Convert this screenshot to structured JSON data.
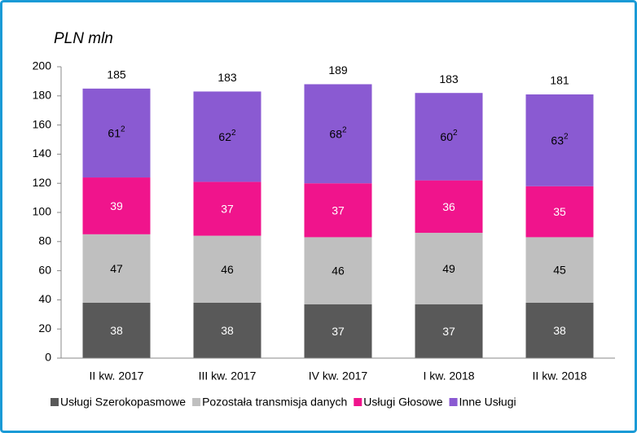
{
  "chart_data": {
    "type": "stacked_bar",
    "title": "PLN mln",
    "categories": [
      "II kw. 2017",
      "III kw. 2017",
      "IV kw. 2017",
      "I kw. 2018",
      "II kw. 2018"
    ],
    "series": [
      {
        "name": "Usługi Szerokopasmowe",
        "color": "#595959",
        "label_color": "#ffffff",
        "values": [
          38,
          38,
          37,
          37,
          38
        ]
      },
      {
        "name": "Pozostała transmisja danych",
        "color": "#bfbfbf",
        "label_color": "#000000",
        "values": [
          47,
          46,
          46,
          49,
          45
        ]
      },
      {
        "name": "Usługi Głosowe",
        "color": "#f0148c",
        "label_color": "#ffffff",
        "values": [
          39,
          37,
          37,
          36,
          35
        ]
      },
      {
        "name": "Inne Usługi",
        "color": "#8a5ad2",
        "label_color": "#000000",
        "value_note": "2",
        "values": [
          61,
          62,
          68,
          60,
          63
        ]
      }
    ],
    "totals": [
      185,
      183,
      189,
      183,
      181
    ],
    "ylim": [
      0,
      200
    ],
    "yticks": [
      0,
      20,
      40,
      60,
      80,
      100,
      120,
      140,
      160,
      180,
      200
    ],
    "grid": false,
    "legend": "bottom"
  }
}
